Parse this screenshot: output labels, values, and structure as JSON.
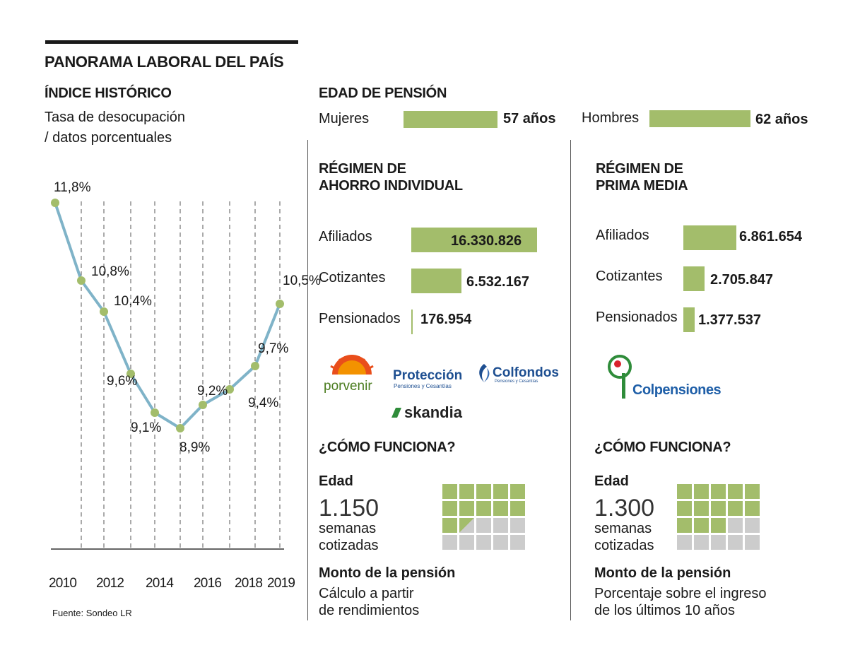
{
  "header": {
    "title": "PANORAMA LABORAL DEL PAÍS"
  },
  "left": {
    "section_title": "ÍNDICE HISTÓRICO",
    "subtitle_line1": "Tasa de desocupación",
    "subtitle_line2": "/ datos porcentuales",
    "source": "Fuente: Sondeo LR"
  },
  "chart_data": {
    "type": "line",
    "title": "Tasa de desocupación / datos porcentuales",
    "x": [
      2010,
      2011,
      2012,
      2013,
      2014,
      2015,
      2016,
      2017,
      2018,
      2019
    ],
    "values": [
      11.8,
      10.8,
      10.4,
      9.6,
      9.1,
      8.9,
      9.2,
      9.4,
      9.7,
      10.5
    ],
    "labels": [
      "11,8%",
      "10,8%",
      "10,4%",
      "9,6%",
      "9,1%",
      "8,9%",
      "9,2%",
      "9,4%",
      "9,7%",
      "10,5%"
    ],
    "tick_labels": [
      "2010",
      "2012",
      "2014",
      "2016",
      "2018",
      "2019"
    ],
    "ylim": [
      7.5,
      12.5
    ],
    "line_color": "#7fb3c8",
    "point_color": "#a3bd6b",
    "grid": "vertical-dashed"
  },
  "pension_age": {
    "title": "EDAD DE PENSIÓN",
    "women_label": "Mujeres",
    "women_value": "57 años",
    "men_label": "Hombres",
    "men_value": "62 años"
  },
  "rai": {
    "title_line1": "RÉGIMEN DE",
    "title_line2": "AHORRO INDIVIDUAL",
    "rows": [
      {
        "label": "Afiliados",
        "value": "16.330.826",
        "amount": 16330826
      },
      {
        "label": "Cotizantes",
        "value": "6.532.167",
        "amount": 6532167
      },
      {
        "label": "Pensionados",
        "value": "176.954",
        "amount": 176954
      }
    ],
    "logos": {
      "porvenir": "porvenir",
      "proteccion": "Protección",
      "proteccion_sub": "Pensiones y Cesantías",
      "colfondos": "Colfondos",
      "colfondos_sub": "Pensiones y Cesantías",
      "skandia": "skandia"
    },
    "how": {
      "title": "¿CÓMO FUNCIONA?",
      "age_label": "Edad",
      "weeks": "1.150",
      "weeks_unit_line1": "semanas",
      "weeks_unit_line2": "cotizadas",
      "grid_filled": 11.5,
      "grid_total": 20,
      "amount_title": "Monto de la pensión",
      "amount_line1": "Cálculo a partir",
      "amount_line2": "de rendimientos"
    }
  },
  "rpm": {
    "title_line1": "RÉGIMEN DE",
    "title_line2": "PRIMA MEDIA",
    "rows": [
      {
        "label": "Afiliados",
        "value": "6.861.654",
        "amount": 6861654
      },
      {
        "label": "Cotizantes",
        "value": "2.705.847",
        "amount": 2705847
      },
      {
        "label": "Pensionados",
        "value": "1.377.537",
        "amount": 1377537
      }
    ],
    "logo": {
      "colpensiones": "Colpensiones"
    },
    "how": {
      "title": "¿CÓMO FUNCIONA?",
      "age_label": "Edad",
      "weeks": "1.300",
      "weeks_unit_line1": "semanas",
      "weeks_unit_line2": "cotizadas",
      "grid_filled": 13,
      "grid_total": 20,
      "amount_title": "Monto de la pensión",
      "amount_line1": "Porcentaje sobre el ingreso",
      "amount_line2": "de los últimos 10 años"
    }
  },
  "colors": {
    "accent_green": "#a3bd6b",
    "line_blue": "#7fb3c8",
    "grey_square": "#cccccc"
  }
}
